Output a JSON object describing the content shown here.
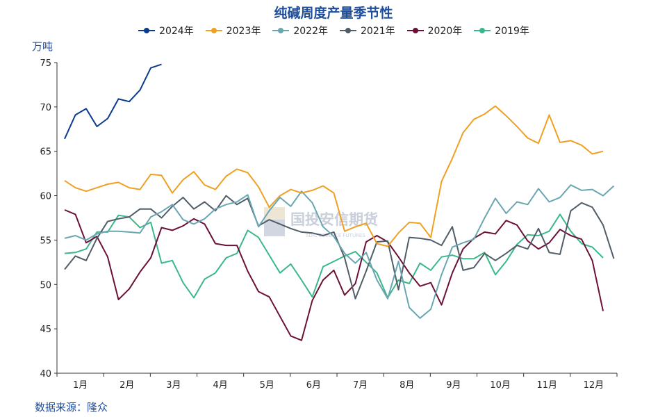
{
  "chart_data": {
    "type": "line",
    "title": "纯碱周度产量季节性",
    "ylabel": "万吨",
    "ylim": [
      40,
      75
    ],
    "yticks": [
      40,
      45,
      50,
      55,
      60,
      65,
      70,
      75
    ],
    "month_labels": [
      "1月",
      "2月",
      "3月",
      "4月",
      "5月",
      "6月",
      "7月",
      "8月",
      "9月",
      "10月",
      "11月",
      "12月"
    ],
    "legend_position": "top",
    "grid": false,
    "series": [
      {
        "name": "2024年",
        "color": "#0b3a8c",
        "values": [
          66.4,
          69.1,
          69.8,
          67.8,
          68.7,
          70.9,
          70.6,
          71.9,
          74.4,
          74.8
        ]
      },
      {
        "name": "2023年",
        "color": "#f0a020",
        "values": [
          61.7,
          60.9,
          60.5,
          60.9,
          61.3,
          61.5,
          60.9,
          60.7,
          62.4,
          62.3,
          60.3,
          61.8,
          62.7,
          61.2,
          60.7,
          62.2,
          63.0,
          62.6,
          61.0,
          58.7,
          60.0,
          60.7,
          60.3,
          60.6,
          61.1,
          60.3,
          56.0,
          56.5,
          56.9,
          54.6,
          54.3,
          55.8,
          57.0,
          56.9,
          55.3,
          61.6,
          64.2,
          67.1,
          68.6,
          69.2,
          70.1,
          69.0,
          67.8,
          66.5,
          65.9,
          69.1,
          66.0,
          66.2,
          65.7,
          64.7,
          65.0
        ]
      },
      {
        "name": "2022年",
        "color": "#6aa6b2",
        "values": [
          55.2,
          55.5,
          55.0,
          55.7,
          56.0,
          56.0,
          55.9,
          55.8,
          57.6,
          58.2,
          59.0,
          57.3,
          56.8,
          57.4,
          58.5,
          59.0,
          59.3,
          60.1,
          56.5,
          58.3,
          59.8,
          58.8,
          60.5,
          59.2,
          56.5,
          55.4,
          53.5,
          52.4,
          53.6,
          50.5,
          48.4,
          52.6,
          47.4,
          46.2,
          47.2,
          51.1,
          54.2,
          54.7,
          55.1,
          57.5,
          59.7,
          58.0,
          59.3,
          59.0,
          60.8,
          59.3,
          59.8,
          61.2,
          60.6,
          60.7,
          60.0,
          61.1
        ]
      },
      {
        "name": "2021年",
        "color": "#505d68",
        "values": [
          51.7,
          53.2,
          52.7,
          55.2,
          57.1,
          57.4,
          57.6,
          58.5,
          58.5,
          57.5,
          58.8,
          59.8,
          58.5,
          59.3,
          58.3,
          60.0,
          59.0,
          59.7,
          56.6,
          57.3,
          56.8,
          56.3,
          55.9,
          55.8,
          55.5,
          55.9,
          53.0,
          48.4,
          51.5,
          54.8,
          54.9,
          49.4,
          55.3,
          55.2,
          55.0,
          54.4,
          56.5,
          51.6,
          51.9,
          53.5,
          52.7,
          53.5,
          54.4,
          54.0,
          56.3,
          53.6,
          53.4,
          58.3,
          59.2,
          58.7,
          56.7,
          52.9
        ]
      },
      {
        "name": "2020年",
        "color": "#6b1038",
        "values": [
          58.4,
          57.9,
          54.7,
          55.4,
          53.1,
          48.3,
          49.5,
          51.4,
          53.0,
          56.4,
          56.1,
          56.6,
          57.4,
          56.8,
          54.6,
          54.4,
          54.4,
          51.5,
          49.2,
          48.6,
          46.4,
          44.2,
          43.7,
          48.2,
          50.5,
          51.6,
          48.8,
          50.1,
          54.8,
          55.5,
          54.8,
          53.1,
          51.3,
          49.8,
          50.2,
          47.7,
          51.3,
          54.0,
          55.2,
          55.9,
          55.7,
          57.2,
          56.7,
          54.9,
          54.0,
          54.7,
          56.2,
          55.5,
          55.1,
          52.7,
          47.0
        ]
      },
      {
        "name": "2019年",
        "color": "#3ab88a",
        "values": [
          53.5,
          53.6,
          54.0,
          55.9,
          55.9,
          57.8,
          57.6,
          56.4,
          57.0,
          52.4,
          52.7,
          50.2,
          48.5,
          50.6,
          51.3,
          53.0,
          53.5,
          56.1,
          55.3,
          53.3,
          51.3,
          52.3,
          50.5,
          48.6,
          52.0,
          52.6,
          53.2,
          53.7,
          52.5,
          51.3,
          48.5,
          50.5,
          50.1,
          52.4,
          51.6,
          53.1,
          53.3,
          52.9,
          52.9,
          53.6,
          51.1,
          52.6,
          54.5,
          55.6,
          55.5,
          56.0,
          57.9,
          56.0,
          54.6,
          54.2,
          53.0
        ]
      }
    ]
  },
  "y_unit": "万吨",
  "source_note": "数据来源：隆众",
  "watermark": {
    "cn": "国投安信期货",
    "en": "SDIC ESSENCE FUTURES"
  }
}
